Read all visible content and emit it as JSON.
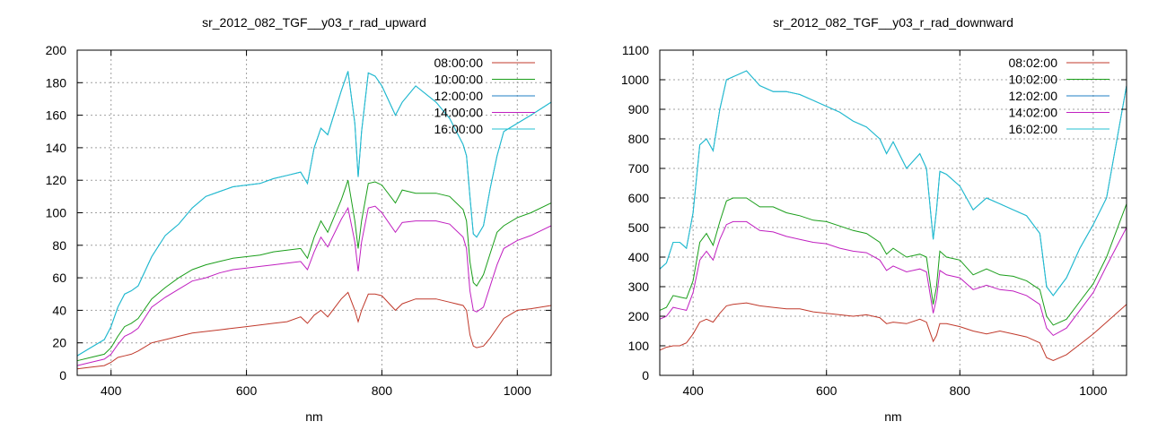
{
  "colors": {
    "grid": "#a0a0a0",
    "frame": "#000000",
    "series": [
      "#c0392b",
      "#1a9e1a",
      "#1f7fc4",
      "#c020c0",
      "#20c0d0"
    ]
  },
  "chart_data": [
    {
      "type": "line",
      "title": "sr_2012_082_TGF__y03_r_rad_upward",
      "xlabel": "nm",
      "ylabel": "",
      "xlim": [
        350,
        1050
      ],
      "ylim": [
        0,
        200
      ],
      "xticks": [
        400,
        600,
        800,
        1000
      ],
      "yticks": [
        0,
        20,
        40,
        60,
        80,
        100,
        120,
        140,
        160,
        180,
        200
      ],
      "grid": true,
      "legend_position": "top-right",
      "series": [
        {
          "name": "08:00:00",
          "x": [
            350,
            370,
            390,
            400,
            410,
            420,
            430,
            440,
            460,
            480,
            500,
            520,
            540,
            560,
            580,
            600,
            620,
            640,
            660,
            680,
            690,
            700,
            710,
            720,
            740,
            750,
            760,
            765,
            770,
            780,
            790,
            800,
            820,
            830,
            850,
            880,
            900,
            920,
            925,
            930,
            935,
            940,
            950,
            960,
            970,
            980,
            1000,
            1020,
            1050
          ],
          "y": [
            4,
            5,
            6,
            8,
            11,
            12,
            13,
            15,
            20,
            22,
            24,
            26,
            27,
            28,
            29,
            30,
            31,
            32,
            33,
            36,
            32,
            37,
            40,
            36,
            47,
            51,
            40,
            33,
            40,
            50,
            50,
            49,
            40,
            44,
            47,
            47,
            45,
            43,
            40,
            25,
            18,
            17,
            18,
            23,
            29,
            35,
            40,
            41,
            43
          ]
        },
        {
          "name": "10:00:00",
          "x": [
            350,
            370,
            390,
            400,
            410,
            420,
            430,
            440,
            460,
            480,
            500,
            520,
            540,
            560,
            580,
            600,
            620,
            640,
            660,
            680,
            690,
            700,
            710,
            720,
            740,
            750,
            760,
            765,
            770,
            780,
            790,
            800,
            820,
            830,
            850,
            880,
            900,
            920,
            925,
            930,
            935,
            940,
            950,
            960,
            970,
            980,
            1000,
            1020,
            1050
          ],
          "y": [
            9,
            11,
            13,
            17,
            24,
            30,
            32,
            35,
            47,
            54,
            60,
            65,
            68,
            70,
            72,
            73,
            74,
            76,
            77,
            78,
            72,
            85,
            95,
            88,
            108,
            120,
            95,
            78,
            95,
            118,
            119,
            117,
            106,
            114,
            112,
            112,
            110,
            102,
            95,
            70,
            57,
            55,
            62,
            75,
            88,
            92,
            97,
            100,
            106
          ]
        },
        {
          "name": "12:00:00",
          "x": [
            350,
            370,
            390,
            400,
            410,
            420,
            430,
            440,
            460,
            480,
            500,
            520,
            540,
            560,
            580,
            600,
            620,
            640,
            660,
            680,
            690,
            700,
            710,
            720,
            740,
            750,
            760,
            765,
            770,
            780,
            790,
            800,
            820,
            830,
            850,
            880,
            900,
            920,
            925,
            930,
            935,
            940,
            950,
            960,
            970,
            980,
            1000,
            1020,
            1050
          ],
          "y": [
            12,
            17,
            22,
            30,
            42,
            50,
            52,
            55,
            73,
            86,
            93,
            103,
            110,
            113,
            116,
            117,
            118,
            121,
            123,
            125,
            118,
            140,
            152,
            148,
            175,
            187,
            155,
            122,
            150,
            186,
            184,
            178,
            160,
            168,
            178,
            168,
            158,
            142,
            135,
            110,
            87,
            85,
            92,
            115,
            135,
            150,
            155,
            160,
            168
          ]
        },
        {
          "name": "14:00:00",
          "x": [
            350,
            370,
            390,
            400,
            410,
            420,
            430,
            440,
            460,
            480,
            500,
            520,
            540,
            560,
            580,
            600,
            620,
            640,
            660,
            680,
            690,
            700,
            710,
            720,
            740,
            750,
            760,
            765,
            770,
            780,
            790,
            800,
            820,
            830,
            850,
            880,
            900,
            920,
            925,
            930,
            935,
            940,
            950,
            960,
            970,
            980,
            1000,
            1020,
            1050
          ],
          "y": [
            6,
            8,
            10,
            13,
            19,
            24,
            26,
            29,
            42,
            48,
            53,
            58,
            60,
            63,
            65,
            66,
            67,
            68,
            69,
            70,
            65,
            76,
            85,
            79,
            96,
            103,
            82,
            64,
            82,
            103,
            104,
            100,
            88,
            94,
            95,
            95,
            93,
            85,
            78,
            52,
            40,
            39,
            42,
            55,
            68,
            78,
            83,
            86,
            92
          ]
        },
        {
          "name": "16:00:00",
          "x": [
            350,
            370,
            390,
            400,
            410,
            420,
            430,
            440,
            460,
            480,
            500,
            520,
            540,
            560,
            580,
            600,
            620,
            640,
            660,
            680,
            690,
            700,
            710,
            720,
            740,
            750,
            760,
            765,
            770,
            780,
            790,
            800,
            820,
            830,
            850,
            880,
            900,
            920,
            925,
            930,
            935,
            940,
            950,
            960,
            970,
            980,
            1000,
            1020,
            1050
          ],
          "y": [
            12,
            17,
            22,
            30,
            42,
            50,
            52,
            55,
            73,
            86,
            93,
            103,
            110,
            113,
            116,
            117,
            118,
            121,
            123,
            125,
            118,
            140,
            152,
            148,
            175,
            187,
            155,
            122,
            150,
            186,
            184,
            178,
            160,
            168,
            178,
            168,
            158,
            142,
            135,
            110,
            87,
            85,
            92,
            115,
            135,
            150,
            155,
            160,
            168
          ]
        }
      ]
    },
    {
      "type": "line",
      "title": "sr_2012_082_TGF__y03_r_rad_downward",
      "xlabel": "nm",
      "ylabel": "",
      "xlim": [
        350,
        1050
      ],
      "ylim": [
        0,
        1100
      ],
      "xticks": [
        400,
        600,
        800,
        1000
      ],
      "yticks": [
        0,
        100,
        200,
        300,
        400,
        500,
        600,
        700,
        800,
        900,
        1000,
        1100
      ],
      "grid": true,
      "legend_position": "top-right",
      "series": [
        {
          "name": "08:02:00",
          "x": [
            350,
            360,
            370,
            380,
            390,
            400,
            410,
            420,
            430,
            440,
            450,
            460,
            480,
            500,
            520,
            540,
            560,
            580,
            600,
            620,
            640,
            660,
            680,
            690,
            700,
            720,
            740,
            750,
            760,
            765,
            770,
            780,
            800,
            820,
            840,
            860,
            880,
            900,
            920,
            930,
            940,
            960,
            980,
            1000,
            1020,
            1050
          ],
          "y": [
            85,
            95,
            100,
            100,
            110,
            140,
            180,
            190,
            180,
            210,
            235,
            240,
            245,
            235,
            230,
            225,
            225,
            215,
            210,
            205,
            200,
            205,
            195,
            175,
            180,
            175,
            190,
            180,
            115,
            135,
            175,
            175,
            165,
            150,
            140,
            150,
            140,
            130,
            110,
            60,
            50,
            70,
            105,
            140,
            180,
            240
          ]
        },
        {
          "name": "10:02:00",
          "x": [
            350,
            360,
            370,
            380,
            390,
            400,
            410,
            420,
            430,
            440,
            450,
            460,
            480,
            500,
            520,
            540,
            560,
            580,
            600,
            620,
            640,
            660,
            680,
            690,
            700,
            720,
            740,
            750,
            760,
            765,
            770,
            780,
            800,
            820,
            840,
            860,
            880,
            900,
            920,
            930,
            940,
            960,
            980,
            1000,
            1020,
            1050
          ],
          "y": [
            220,
            230,
            270,
            265,
            260,
            320,
            450,
            480,
            440,
            520,
            590,
            600,
            600,
            570,
            570,
            550,
            540,
            525,
            520,
            505,
            490,
            480,
            450,
            410,
            430,
            400,
            410,
            400,
            240,
            300,
            420,
            400,
            390,
            340,
            360,
            340,
            335,
            320,
            290,
            200,
            170,
            190,
            250,
            310,
            400,
            580
          ]
        },
        {
          "name": "12:02:00",
          "x": [
            350,
            360,
            370,
            380,
            390,
            400,
            410,
            420,
            430,
            440,
            450,
            460,
            480,
            500,
            520,
            540,
            560,
            580,
            600,
            620,
            640,
            660,
            680,
            690,
            700,
            720,
            740,
            750,
            760,
            765,
            770,
            780,
            800,
            820,
            840,
            860,
            880,
            900,
            920,
            930,
            940,
            960,
            980,
            1000,
            1020,
            1050
          ],
          "y": [
            360,
            380,
            450,
            450,
            430,
            550,
            780,
            800,
            760,
            900,
            1000,
            1010,
            1030,
            980,
            960,
            960,
            950,
            930,
            910,
            890,
            860,
            840,
            800,
            750,
            790,
            700,
            750,
            700,
            460,
            560,
            690,
            680,
            640,
            560,
            600,
            580,
            560,
            540,
            480,
            300,
            270,
            330,
            430,
            510,
            600,
            980
          ]
        },
        {
          "name": "14:02:00",
          "x": [
            350,
            360,
            370,
            380,
            390,
            400,
            410,
            420,
            430,
            440,
            450,
            460,
            480,
            500,
            520,
            540,
            560,
            580,
            600,
            620,
            640,
            660,
            680,
            690,
            700,
            720,
            740,
            750,
            760,
            765,
            770,
            780,
            800,
            820,
            840,
            860,
            880,
            900,
            920,
            930,
            940,
            960,
            980,
            1000,
            1020,
            1050
          ],
          "y": [
            190,
            200,
            230,
            225,
            220,
            280,
            390,
            420,
            390,
            460,
            510,
            520,
            520,
            490,
            485,
            470,
            460,
            450,
            445,
            430,
            420,
            415,
            390,
            355,
            370,
            350,
            360,
            350,
            210,
            260,
            355,
            340,
            330,
            290,
            305,
            290,
            285,
            270,
            240,
            160,
            135,
            160,
            220,
            280,
            370,
            500
          ]
        },
        {
          "name": "16:02:00",
          "x": [
            350,
            360,
            370,
            380,
            390,
            400,
            410,
            420,
            430,
            440,
            450,
            460,
            480,
            500,
            520,
            540,
            560,
            580,
            600,
            620,
            640,
            660,
            680,
            690,
            700,
            720,
            740,
            750,
            760,
            765,
            770,
            780,
            800,
            820,
            840,
            860,
            880,
            900,
            920,
            930,
            940,
            960,
            980,
            1000,
            1020,
            1050
          ],
          "y": [
            360,
            380,
            450,
            450,
            430,
            550,
            780,
            800,
            760,
            900,
            1000,
            1010,
            1030,
            980,
            960,
            960,
            950,
            930,
            910,
            890,
            860,
            840,
            800,
            750,
            790,
            700,
            750,
            700,
            460,
            560,
            690,
            680,
            640,
            560,
            600,
            580,
            560,
            540,
            480,
            300,
            270,
            330,
            430,
            510,
            600,
            980
          ]
        }
      ]
    }
  ]
}
